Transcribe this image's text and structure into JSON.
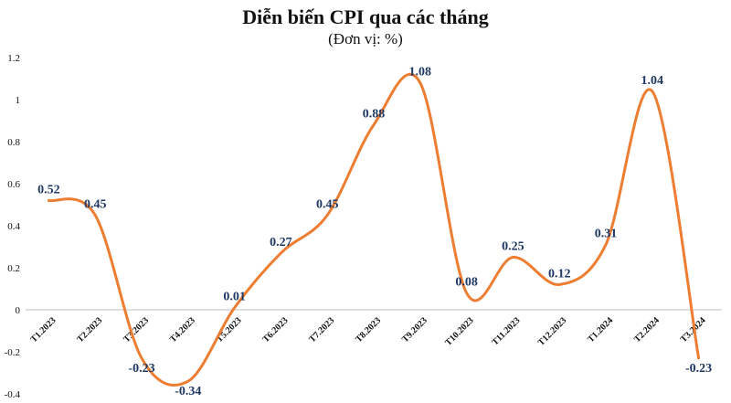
{
  "chart_data": {
    "type": "line",
    "title": "Diễn biến CPI qua các tháng",
    "subtitle": "(Đơn vị: %)",
    "categories": [
      "T1.2023",
      "T2.2023",
      "T3.2023",
      "T4.2023",
      "T5.2023",
      "T6.2023",
      "T7.2023",
      "T8.2023",
      "T9.2023",
      "T10.2023",
      "T11.2023",
      "T12.2023",
      "T1.2024",
      "T2.2024",
      "T3.2024"
    ],
    "series": [
      {
        "values": [
          0.52,
          0.45,
          -0.23,
          -0.34,
          0.01,
          0.27,
          0.45,
          0.88,
          1.08,
          0.08,
          0.25,
          0.12,
          0.31,
          1.04,
          -0.23
        ]
      }
    ],
    "data_labels": [
      "0.52",
      "0.45",
      "-0.23",
      "-0.34",
      "0.01",
      "0.27",
      "0.45",
      "0.88",
      "1.08",
      "0.08",
      "0.25",
      "0.12",
      "0.31",
      "1.04",
      "-0.23"
    ],
    "yticks": [
      "-0.4",
      "-0.2",
      "0",
      "0.2",
      "0.4",
      "0.6",
      "0.8",
      "1",
      "1.2"
    ],
    "ylim": [
      -0.4,
      1.2
    ],
    "smooth": true,
    "grid": false,
    "colors": {
      "line": "#ED7D31",
      "label": "#1F3864",
      "axis_text": "#111111",
      "zero_line": "#BFBFBF"
    }
  }
}
